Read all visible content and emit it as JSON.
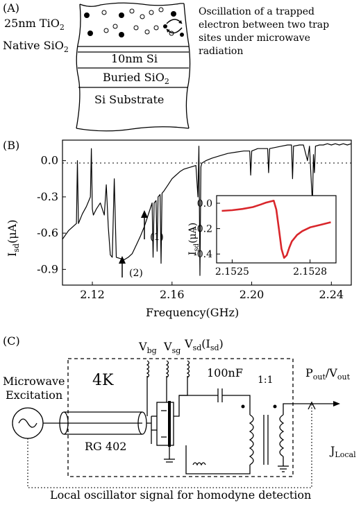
{
  "panel_a": {
    "label": "(A)",
    "layers": {
      "tio2": "25nm TiO",
      "tio2_sub": "2",
      "native": "Native SiO",
      "native_sub": "2",
      "si": "10nm Si",
      "buried": "Buried SiO",
      "buried_sub": "2",
      "substrate": "Si Substrate"
    },
    "caption": [
      "Oscillation of a trapped",
      "electron between two trap",
      "sites under microwave",
      "radiation"
    ]
  },
  "panel_b": {
    "label": "(B)",
    "ylabel_main": "I",
    "ylabel_sub": "sd",
    "ylabel_unit": "(μA)",
    "xlabel": "Frequency(GHz)",
    "arrow1_label": "(1)",
    "arrow2_label": "(2)",
    "inset_ylabel_main": "I",
    "inset_ylabel_sub": "sd",
    "inset_ylabel_unit": "(μA)"
  },
  "chart_data": [
    {
      "type": "line",
      "xlabel": "Frequency(GHz)",
      "ylabel": "Isd(μA)",
      "xlim": [
        2.105,
        2.25
      ],
      "ylim": [
        -1.03,
        0.17
      ],
      "xticks": [
        "2.12",
        "2.16",
        "2.20",
        "2.24"
      ],
      "yticks": [
        "0.0",
        "-0.3",
        "-0.6",
        "-0.9"
      ],
      "series": [
        {
          "color": "#000000",
          "x": [
            2.105,
            2.108,
            2.11,
            2.112,
            2.1125,
            2.113,
            2.1135,
            2.115,
            2.117,
            2.119,
            2.1195,
            2.12,
            2.1205,
            2.122,
            2.124,
            2.126,
            2.127,
            2.128,
            2.129,
            2.13,
            2.131,
            2.132,
            2.134,
            2.136,
            2.138,
            2.14,
            2.142,
            2.144,
            2.146,
            2.148,
            2.15,
            2.1505,
            2.151,
            2.152,
            2.1525,
            2.153,
            2.154,
            2.1545,
            2.155,
            2.156,
            2.158,
            2.16,
            2.162,
            2.164,
            2.166,
            2.168,
            2.17,
            2.172,
            2.173,
            2.1735,
            2.174,
            2.1745,
            2.175,
            2.177,
            2.18,
            2.184,
            2.188,
            2.192,
            2.196,
            2.199,
            2.1995,
            2.2,
            2.203,
            2.206,
            2.208,
            2.2085,
            2.209,
            2.212,
            2.215,
            2.218,
            2.22,
            2.2205,
            2.221,
            2.224,
            2.226,
            2.228,
            2.229,
            2.23,
            2.2305,
            2.231,
            2.2315,
            2.232,
            2.234,
            2.236,
            2.238,
            2.24,
            2.242,
            2.244,
            2.246,
            2.248,
            2.25
          ],
          "y": [
            -0.65,
            -0.58,
            -0.55,
            -0.52,
            0.0,
            -0.52,
            -0.5,
            -0.44,
            -0.38,
            -0.3,
            0.1,
            -0.4,
            -0.45,
            -0.4,
            -0.35,
            -0.45,
            -0.2,
            -0.55,
            -0.78,
            -0.8,
            -0.15,
            -0.8,
            -0.81,
            -0.82,
            -0.8,
            -0.77,
            -0.7,
            -0.63,
            -0.55,
            -0.45,
            -0.35,
            -0.8,
            -0.35,
            -0.33,
            -0.75,
            -0.3,
            -0.28,
            -0.85,
            -0.27,
            -0.25,
            -0.2,
            -0.15,
            -0.12,
            -0.09,
            -0.07,
            -0.06,
            -0.05,
            -0.04,
            -0.3,
            0.12,
            -0.95,
            -0.05,
            -0.02,
            0.0,
            0.02,
            0.04,
            0.06,
            0.07,
            0.08,
            0.08,
            -0.12,
            0.08,
            0.1,
            0.1,
            0.1,
            -0.1,
            0.1,
            0.11,
            0.12,
            0.13,
            0.13,
            -0.15,
            0.12,
            0.13,
            0.13,
            0.0,
            0.12,
            -0.2,
            -0.35,
            0.05,
            -0.1,
            0.12,
            0.13,
            0.13,
            0.14,
            0.13,
            0.14,
            0.13,
            0.14,
            0.13,
            0.14
          ]
        }
      ]
    },
    {
      "type": "line",
      "xlabel": "",
      "ylabel": "Isd(μA)",
      "xlim": [
        2.15244,
        2.1529
      ],
      "ylim": [
        -0.47,
        0.06
      ],
      "xticks": [
        "2.1525",
        "2.1528"
      ],
      "yticks": [
        "0.0",
        "-0.2",
        "-0.4"
      ],
      "series": [
        {
          "color": "#d9262b",
          "x": [
            2.15246,
            2.1525,
            2.15254,
            2.15258,
            2.15261,
            2.15263,
            2.15265,
            2.15266,
            2.15267,
            2.15268,
            2.15269,
            2.1527,
            2.15271,
            2.15272,
            2.15273,
            2.15275,
            2.15277,
            2.1528,
            2.15284,
            2.15288
          ],
          "y": [
            -0.06,
            -0.055,
            -0.045,
            -0.03,
            -0.01,
            0.005,
            0.015,
            0.02,
            -0.05,
            -0.2,
            -0.36,
            -0.43,
            -0.41,
            -0.35,
            -0.3,
            -0.25,
            -0.22,
            -0.19,
            -0.17,
            -0.15
          ]
        }
      ]
    }
  ],
  "panel_c": {
    "label": "(C)",
    "four_k": "4K",
    "microwave_1": "Microwave",
    "microwave_2": "Excitation",
    "rg402": "RG 402",
    "vbg": "V",
    "vbg_sub": "bg",
    "vsg": "V",
    "vsg_sub": "sg",
    "vsd": "V",
    "vsd_sub": "sd",
    "isd": "(I",
    "isd_sub": "sd",
    "isd_close": ")",
    "cap": "100nF",
    "ratio": "1:1",
    "pout": "P",
    "pout_sub": "out",
    "slash": "/V",
    "vout_sub": "out",
    "jlocal": "J",
    "jlocal_sub": "Local",
    "bottom": "Local oscillator signal for homodyne detection"
  }
}
